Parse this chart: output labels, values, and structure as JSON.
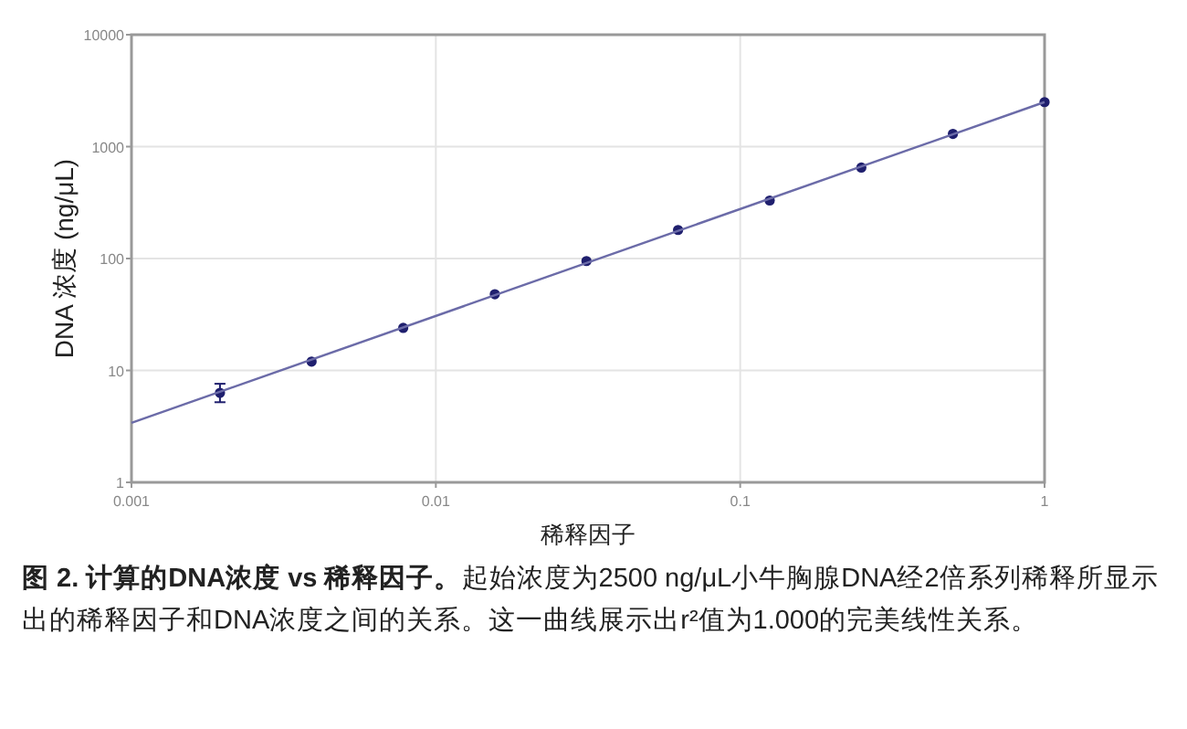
{
  "chart_data": {
    "type": "scatter",
    "title": "图 2. 计算的DNA浓度 vs 稀释因子。",
    "xlabel": "稀释因子",
    "ylabel": "DNA 浓度 (ng/μL)",
    "annotations": [
      "起始浓度为2500 ng/μL小牛胸腺DNA经2倍系列稀释所显示出的稀释因子和DNA浓度之间的关系。这一曲线展示出r²值为1.000的完美线性关系。"
    ],
    "log": "xy",
    "grid": true,
    "xlim": [
      0.001,
      1
    ],
    "ylim": [
      1,
      10000
    ],
    "xticks": [
      0.001,
      0.01,
      0.1,
      1
    ],
    "yticks": [
      1,
      10,
      100,
      1000,
      10000
    ],
    "series": [
      {
        "type": "scatter",
        "marker": "circle",
        "color": "#1f1f6e",
        "x": [
          0.001953125,
          0.00390625,
          0.0078125,
          0.015625,
          0.03125,
          0.0625,
          0.125,
          0.25,
          0.5,
          1
        ],
        "values": [
          6.3,
          12,
          24,
          48,
          95,
          180,
          330,
          650,
          1300,
          2500
        ],
        "errors": [
          [
            5.2,
            7.6
          ],
          null,
          null,
          null,
          null,
          null,
          null,
          null,
          null,
          null
        ]
      },
      {
        "type": "line",
        "color": "#6b6ba8",
        "x": [
          0.001,
          1
        ],
        "values": [
          3.4,
          2500
        ]
      }
    ]
  }
}
